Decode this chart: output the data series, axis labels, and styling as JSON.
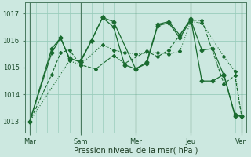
{
  "xlabel": "Pression niveau de la mer( hPa )",
  "xlim": [
    0,
    100
  ],
  "ylim": [
    1012.6,
    1017.4
  ],
  "yticks": [
    1013,
    1014,
    1015,
    1016,
    1017
  ],
  "xtick_positions": [
    2,
    25,
    50,
    75,
    98
  ],
  "xtick_labels": [
    "Mar",
    "Sam",
    "Mer",
    "Jeu",
    "Ven"
  ],
  "vline_positions": [
    2,
    25,
    50,
    75,
    98
  ],
  "bg_color": "#cce8e0",
  "grid_color": "#99ccbb",
  "line_color": "#1a6b30",
  "series": [
    {
      "x": [
        2,
        12,
        16,
        20,
        25,
        30,
        35,
        40,
        45,
        50,
        55,
        60,
        65,
        70,
        75,
        80,
        85,
        90,
        95,
        98
      ],
      "y": [
        1013.0,
        1015.55,
        1016.1,
        1015.3,
        1015.25,
        1016.0,
        1016.85,
        1016.5,
        1015.1,
        1014.95,
        1015.2,
        1016.6,
        1016.7,
        1016.2,
        1016.8,
        1014.5,
        1014.5,
        1014.75,
        1013.2,
        1013.2
      ],
      "style": "-",
      "marker": "D",
      "ms": 2.5,
      "lw": 0.9
    },
    {
      "x": [
        2,
        12,
        16,
        20,
        25,
        30,
        35,
        40,
        50,
        55,
        60,
        65,
        70,
        75,
        80,
        85,
        90,
        95,
        98
      ],
      "y": [
        1013.0,
        1015.7,
        1016.1,
        1015.35,
        1015.2,
        1016.0,
        1016.85,
        1016.7,
        1014.95,
        1015.15,
        1016.55,
        1016.65,
        1016.1,
        1016.75,
        1015.65,
        1015.7,
        1014.7,
        1013.25,
        1013.2
      ],
      "style": "-",
      "marker": "D",
      "ms": 2.5,
      "lw": 0.9
    },
    {
      "x": [
        2,
        12,
        16,
        20,
        25,
        32,
        40,
        45,
        55,
        60,
        65,
        75,
        80,
        90,
        95,
        98
      ],
      "y": [
        1013.0,
        1014.75,
        1015.55,
        1015.65,
        1015.1,
        1014.95,
        1015.45,
        1015.15,
        1015.6,
        1015.4,
        1015.65,
        1016.75,
        1016.75,
        1014.4,
        1014.7,
        1013.2
      ],
      "style": "--",
      "marker": "D",
      "ms": 2.0,
      "lw": 0.8
    },
    {
      "x": [
        2,
        20,
        25,
        35,
        40,
        45,
        50,
        60,
        65,
        70,
        75,
        80,
        90,
        95,
        98
      ],
      "y": [
        1013.0,
        1015.25,
        1015.1,
        1015.85,
        1015.65,
        1015.55,
        1015.5,
        1015.55,
        1015.5,
        1015.6,
        1016.7,
        1016.65,
        1015.4,
        1014.85,
        1013.2
      ],
      "style": ":",
      "marker": "D",
      "ms": 2.0,
      "lw": 0.8
    }
  ]
}
